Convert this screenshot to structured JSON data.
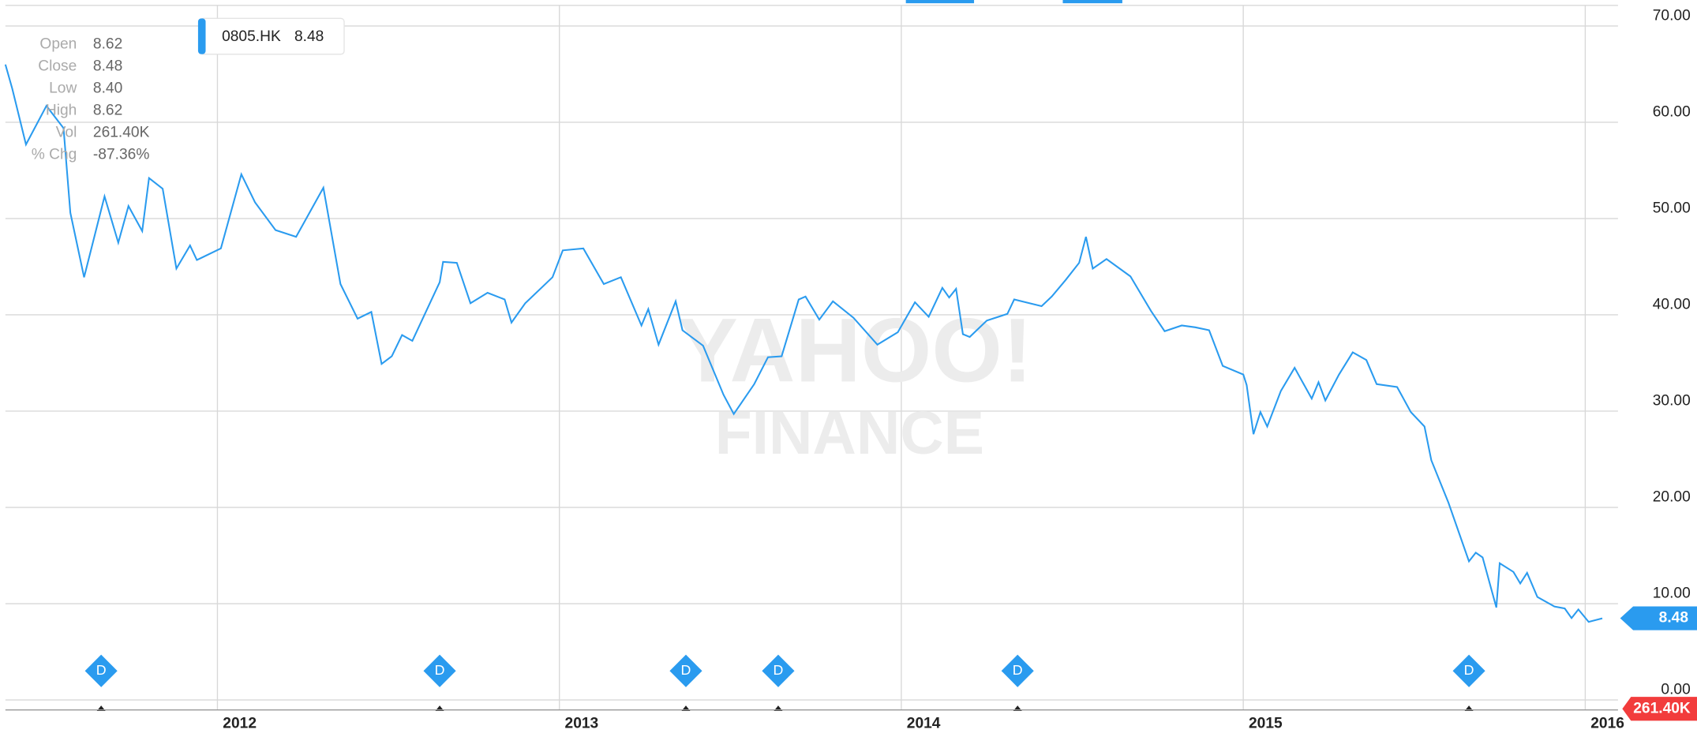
{
  "chart_data": {
    "type": "line",
    "legend": {
      "symbol": "0805.HK",
      "value": "8.48"
    },
    "tooltip": {
      "labels": [
        "Open",
        "Close",
        "Low",
        "High",
        "Vol",
        "% Chg"
      ],
      "values": [
        "8.62",
        "8.48",
        "8.40",
        "8.62",
        "261.40K",
        "-87.36%"
      ]
    },
    "watermark": [
      "YAHOO!",
      "FINANCE"
    ],
    "price_tag": 8.48,
    "volume_tag": "261.40K",
    "xlim": [
      2011.38,
      2016.08
    ],
    "xticks": [
      2012,
      2013,
      2014,
      2015,
      2016
    ],
    "ylim": [
      0,
      70
    ],
    "yticks": [
      {
        "value": 0,
        "label": "0.00"
      },
      {
        "value": 10,
        "label": "10.00"
      },
      {
        "value": 20,
        "label": "20.00"
      },
      {
        "value": 30,
        "label": "30.00"
      },
      {
        "value": 40,
        "label": "40.00"
      },
      {
        "value": 50,
        "label": "50.00"
      },
      {
        "value": 60,
        "label": "60.00"
      },
      {
        "value": 70,
        "label": "70.00"
      }
    ],
    "grid": true,
    "dividends": {
      "label": "D",
      "x": [
        2011.66,
        2012.65,
        2013.37,
        2013.64,
        2014.34,
        2015.66
      ]
    },
    "series": [
      {
        "name": "0805.HK",
        "color": "#2a9bef",
        "x": [
          2011.38,
          2011.4,
          2011.44,
          2011.5,
          2011.55,
          2011.57,
          2011.61,
          2011.67,
          2011.71,
          2011.74,
          2011.78,
          2011.8,
          2011.84,
          2011.88,
          2011.92,
          2011.94,
          2012.01,
          2012.07,
          2012.11,
          2012.17,
          2012.23,
          2012.31,
          2012.36,
          2012.41,
          2012.45,
          2012.48,
          2012.51,
          2012.54,
          2012.57,
          2012.65,
          2012.66,
          2012.7,
          2012.74,
          2012.79,
          2012.84,
          2012.86,
          2012.9,
          2012.98,
          2013.01,
          2013.07,
          2013.13,
          2013.18,
          2013.24,
          2013.26,
          2013.29,
          2013.34,
          2013.36,
          2013.42,
          2013.48,
          2013.51,
          2013.57,
          2013.61,
          2013.65,
          2013.7,
          2013.72,
          2013.76,
          2013.8,
          2013.86,
          2013.93,
          2013.99,
          2014.04,
          2014.08,
          2014.12,
          2014.14,
          2014.16,
          2014.18,
          2014.2,
          2014.25,
          2014.31,
          2014.33,
          2014.41,
          2014.44,
          2014.48,
          2014.52,
          2014.54,
          2014.56,
          2014.6,
          2014.67,
          2014.73,
          2014.77,
          2014.82,
          2014.86,
          2014.9,
          2014.94,
          2015.0,
          2015.01,
          2015.03,
          2015.05,
          2015.07,
          2015.11,
          2015.15,
          2015.2,
          2015.22,
          2015.24,
          2015.28,
          2015.32,
          2015.36,
          2015.39,
          2015.45,
          2015.49,
          2015.53,
          2015.55,
          2015.6,
          2015.66,
          2015.68,
          2015.7,
          2015.74,
          2015.75,
          2015.79,
          2015.81,
          2015.83,
          2015.86,
          2015.91,
          2015.94,
          2015.96,
          2015.98,
          2016.01,
          2016.05
        ],
        "values": [
          66.0,
          63.5,
          57.7,
          61.7,
          59.4,
          50.6,
          43.9,
          52.3,
          47.5,
          51.3,
          48.7,
          54.2,
          53.1,
          44.8,
          47.2,
          45.7,
          46.9,
          54.6,
          51.7,
          48.8,
          48.1,
          53.2,
          43.2,
          39.6,
          40.3,
          34.9,
          35.7,
          37.9,
          37.3,
          43.4,
          45.5,
          45.4,
          41.2,
          42.3,
          41.6,
          39.2,
          41.2,
          43.9,
          46.7,
          46.9,
          43.2,
          43.9,
          38.9,
          40.6,
          36.9,
          41.4,
          38.4,
          36.8,
          31.7,
          29.7,
          32.8,
          35.6,
          35.7,
          41.6,
          41.9,
          39.5,
          41.4,
          39.7,
          36.9,
          38.2,
          41.3,
          39.8,
          42.8,
          41.8,
          42.7,
          38.0,
          37.7,
          39.4,
          40.1,
          41.6,
          40.9,
          41.9,
          43.6,
          45.4,
          48.1,
          44.8,
          45.8,
          44.0,
          40.4,
          38.3,
          38.9,
          38.7,
          38.4,
          34.7,
          33.8,
          32.7,
          27.6,
          29.9,
          28.4,
          32.1,
          34.5,
          31.3,
          33.0,
          31.1,
          33.8,
          36.1,
          35.3,
          32.8,
          32.5,
          29.9,
          28.4,
          24.9,
          20.5,
          14.4,
          15.3,
          14.8,
          9.6,
          14.2,
          13.3,
          12.1,
          13.2,
          10.7,
          9.7,
          9.5,
          8.5,
          9.4,
          8.1,
          8.48
        ]
      }
    ]
  }
}
